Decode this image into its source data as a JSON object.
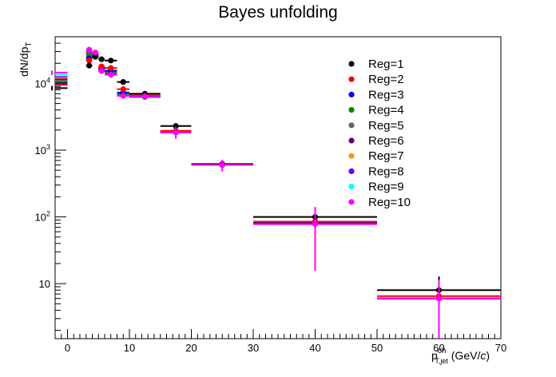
{
  "chart_data": {
    "type": "scatter",
    "title": "Bayes unfolding",
    "ylabel": {
      "main": "dN/dp",
      "sub": "T"
    },
    "xlabel": {
      "main": "p",
      "sup": "ch",
      "sub": "T,jet",
      "unit_pre": "(GeV/",
      "unit_var": "c",
      "unit_post": ")"
    },
    "xlim": [
      -2,
      70
    ],
    "ylim": [
      1.5,
      50000
    ],
    "ylog": true,
    "x_ticks": [
      0,
      10,
      20,
      30,
      40,
      50,
      60,
      70
    ],
    "y_ticks": [
      {
        "value": 10,
        "base": "10",
        "exp": ""
      },
      {
        "value": 100,
        "base": "10",
        "exp": "2"
      },
      {
        "value": 1000,
        "base": "10",
        "exp": "3"
      },
      {
        "value": 10000,
        "base": "10",
        "exp": "4"
      }
    ],
    "legend_position": "top-right",
    "bins": [
      {
        "lo": -5,
        "hi": 0
      },
      {
        "lo": 3,
        "hi": 4
      },
      {
        "lo": 4,
        "hi": 5
      },
      {
        "lo": 5,
        "hi": 6
      },
      {
        "lo": 6,
        "hi": 8
      },
      {
        "lo": 8,
        "hi": 10
      },
      {
        "lo": 10,
        "hi": 15
      },
      {
        "lo": 15,
        "hi": 20
      },
      {
        "lo": 20,
        "hi": 30
      },
      {
        "lo": 30,
        "hi": 50
      },
      {
        "lo": 50,
        "hi": 70
      }
    ],
    "series": [
      {
        "name": "Reg=1",
        "color": "#000000",
        "values": [
          8500,
          18500,
          25000,
          23000,
          22000,
          10500,
          7000,
          2300,
          620,
          100,
          8
        ],
        "err": [
          0.08,
          0.05,
          0.05,
          0.05,
          0.05,
          0.05,
          0.05,
          0.08,
          0.1,
          0.4,
          0.6
        ]
      },
      {
        "name": "Reg=2",
        "color": "#ff0000",
        "values": [
          9500,
          22000,
          25500,
          18000,
          17000,
          8200,
          6600,
          1950,
          600,
          85,
          6.5
        ]
      },
      {
        "name": "Reg=3",
        "color": "#0000ff",
        "values": [
          10000,
          23500,
          25800,
          17000,
          15500,
          7300,
          6400,
          1850,
          600,
          80,
          6
        ]
      },
      {
        "name": "Reg=4",
        "color": "#008800",
        "values": [
          10500,
          25000,
          26000,
          16500,
          15000,
          7000,
          6300,
          1850,
          600,
          80,
          6
        ]
      },
      {
        "name": "Reg=5",
        "color": "#666666",
        "values": [
          11000,
          26500,
          26500,
          16000,
          14500,
          6900,
          6250,
          1850,
          600,
          80,
          6
        ]
      },
      {
        "name": "Reg=6",
        "color": "#660066",
        "values": [
          11500,
          27500,
          27000,
          15800,
          14200,
          6800,
          6300,
          1850,
          600,
          80,
          6
        ]
      },
      {
        "name": "Reg=7",
        "color": "#ff9900",
        "values": [
          12000,
          28500,
          27500,
          15600,
          14000,
          6700,
          6300,
          1850,
          600,
          80,
          6
        ]
      },
      {
        "name": "Reg=8",
        "color": "#6600ff",
        "values": [
          12500,
          29500,
          28000,
          15500,
          13800,
          6600,
          6350,
          1850,
          600,
          80,
          6
        ]
      },
      {
        "name": "Reg=9",
        "color": "#00ffff",
        "values": [
          13500,
          31000,
          28500,
          15400,
          13600,
          6550,
          6400,
          1850,
          600,
          80,
          6
        ]
      },
      {
        "name": "Reg=10",
        "color": "#ff00ff",
        "values": [
          14500,
          32000,
          29000,
          15300,
          13500,
          6500,
          6400,
          1850,
          600,
          78,
          6
        ],
        "err": [
          0.08,
          0.05,
          0.05,
          0.05,
          0.05,
          0.05,
          0.05,
          0.2,
          0.2,
          0.8,
          0.9
        ]
      }
    ]
  }
}
